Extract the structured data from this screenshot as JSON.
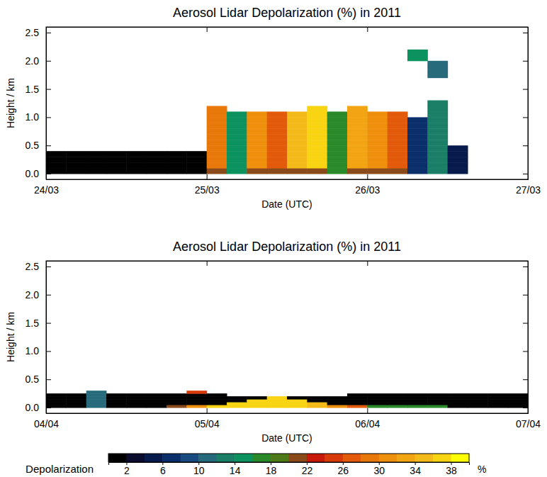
{
  "chart_data": [
    {
      "type": "heatmap",
      "title": "Aerosol Lidar Depolarization (%) in 2011",
      "x_label": "Date (UTC)",
      "y_label": "Height / km",
      "xlim": [
        0,
        3
      ],
      "ylim": [
        -0.1,
        2.6
      ],
      "xticks": [
        {
          "value": 0,
          "label": "24/03"
        },
        {
          "value": 1,
          "label": "25/03"
        },
        {
          "value": 2,
          "label": "26/03"
        },
        {
          "value": 3,
          "label": "27/03"
        }
      ],
      "yticks": [
        {
          "value": 0,
          "label": "0.0"
        },
        0.5,
        {
          "value": 1,
          "label": "1.0"
        },
        1.5,
        {
          "value": 2,
          "label": "2.0"
        },
        2.5
      ],
      "x_edges": [
        0,
        0.125,
        0.25,
        0.375,
        0.5,
        0.625,
        0.75,
        0.875,
        1,
        1.125,
        1.25,
        1.375,
        1.5,
        1.625,
        1.75,
        1.875,
        2,
        2.125,
        2.25,
        2.375,
        2.5,
        2.625,
        2.75,
        2.875,
        3
      ],
      "y_edges": [
        0,
        0.1,
        0.2,
        0.3,
        0.4,
        0.5,
        0.6,
        0.7,
        0.8,
        0.9,
        1.0,
        1.1,
        1.2,
        1.3,
        1.4,
        1.5,
        1.6,
        1.7,
        1.8,
        1.9,
        2.0,
        2.1,
        2.2
      ],
      "z": [
        [
          1,
          1,
          1,
          1,
          1,
          1,
          1,
          1,
          20,
          14,
          20,
          20,
          20,
          20,
          16,
          20,
          20,
          20,
          6,
          12,
          4,
          null,
          null,
          null
        ],
        [
          1,
          1,
          1,
          1,
          1,
          1,
          1,
          1,
          28,
          14,
          30,
          26,
          34,
          36,
          16,
          32,
          30,
          26,
          6,
          12,
          4,
          null,
          null,
          null
        ],
        [
          1,
          1,
          1,
          1,
          1,
          1,
          1,
          1,
          28,
          14,
          30,
          26,
          34,
          36,
          16,
          32,
          30,
          26,
          6,
          12,
          4,
          null,
          null,
          null
        ],
        [
          1,
          1,
          1,
          1,
          1,
          1,
          1,
          1,
          28,
          14,
          30,
          26,
          34,
          36,
          16,
          32,
          30,
          26,
          6,
          12,
          4,
          null,
          null,
          null
        ],
        [
          null,
          null,
          null,
          null,
          null,
          null,
          null,
          null,
          28,
          14,
          30,
          26,
          34,
          36,
          16,
          32,
          30,
          26,
          6,
          12,
          4,
          null,
          null,
          null
        ],
        [
          null,
          null,
          null,
          null,
          null,
          null,
          null,
          null,
          28,
          14,
          30,
          26,
          34,
          36,
          16,
          32,
          30,
          26,
          6,
          12,
          null,
          null,
          null,
          null
        ],
        [
          null,
          null,
          null,
          null,
          null,
          null,
          null,
          null,
          28,
          14,
          30,
          26,
          34,
          36,
          16,
          32,
          30,
          26,
          6,
          12,
          null,
          null,
          null,
          null
        ],
        [
          null,
          null,
          null,
          null,
          null,
          null,
          null,
          null,
          28,
          14,
          30,
          26,
          34,
          36,
          16,
          32,
          30,
          26,
          6,
          12,
          null,
          null,
          null,
          null
        ],
        [
          null,
          null,
          null,
          null,
          null,
          null,
          null,
          null,
          28,
          14,
          30,
          26,
          34,
          36,
          16,
          32,
          30,
          26,
          6,
          12,
          null,
          null,
          null,
          null
        ],
        [
          null,
          null,
          null,
          null,
          null,
          null,
          null,
          null,
          28,
          14,
          30,
          26,
          34,
          36,
          16,
          32,
          30,
          26,
          6,
          12,
          null,
          null,
          null,
          null
        ],
        [
          null,
          null,
          null,
          null,
          null,
          null,
          null,
          null,
          28,
          14,
          30,
          26,
          34,
          36,
          16,
          32,
          30,
          26,
          null,
          12,
          null,
          null,
          null,
          null
        ],
        [
          null,
          null,
          null,
          null,
          null,
          null,
          null,
          null,
          28,
          null,
          null,
          null,
          null,
          36,
          null,
          32,
          null,
          null,
          null,
          12,
          null,
          null,
          null,
          null
        ],
        [
          null,
          null,
          null,
          null,
          null,
          null,
          null,
          null,
          null,
          null,
          null,
          null,
          null,
          null,
          null,
          null,
          null,
          null,
          null,
          12,
          null,
          null,
          null,
          null
        ],
        [
          null,
          null,
          null,
          null,
          null,
          null,
          null,
          null,
          null,
          null,
          null,
          null,
          null,
          null,
          null,
          null,
          null,
          null,
          null,
          null,
          null,
          null,
          null,
          null
        ],
        [
          null,
          null,
          null,
          null,
          null,
          null,
          null,
          null,
          null,
          null,
          null,
          null,
          null,
          null,
          null,
          null,
          null,
          null,
          null,
          null,
          null,
          null,
          null,
          null
        ],
        [
          null,
          null,
          null,
          null,
          null,
          null,
          null,
          null,
          null,
          null,
          null,
          null,
          null,
          null,
          null,
          null,
          null,
          null,
          null,
          null,
          null,
          null,
          null,
          null
        ],
        [
          null,
          null,
          null,
          null,
          null,
          null,
          null,
          null,
          null,
          null,
          null,
          null,
          null,
          null,
          null,
          null,
          null,
          null,
          null,
          null,
          null,
          null,
          null,
          null
        ],
        [
          null,
          null,
          null,
          null,
          null,
          null,
          null,
          null,
          null,
          null,
          null,
          null,
          null,
          null,
          null,
          null,
          null,
          null,
          null,
          10,
          null,
          null,
          null,
          null
        ],
        [
          null,
          null,
          null,
          null,
          null,
          null,
          null,
          null,
          null,
          null,
          null,
          null,
          null,
          null,
          null,
          null,
          null,
          null,
          null,
          10,
          null,
          null,
          null,
          null
        ],
        [
          null,
          null,
          null,
          null,
          null,
          null,
          null,
          null,
          null,
          null,
          null,
          null,
          null,
          null,
          null,
          null,
          null,
          null,
          null,
          10,
          null,
          null,
          null,
          null
        ],
        [
          null,
          null,
          null,
          null,
          null,
          null,
          null,
          null,
          null,
          null,
          null,
          null,
          null,
          null,
          null,
          null,
          null,
          null,
          14,
          null,
          null,
          null,
          null,
          null
        ],
        [
          null,
          null,
          null,
          null,
          null,
          null,
          null,
          null,
          null,
          null,
          null,
          null,
          null,
          null,
          null,
          null,
          null,
          null,
          14,
          null,
          null,
          null,
          null,
          null
        ]
      ]
    },
    {
      "type": "heatmap",
      "title": "Aerosol Lidar Depolarization (%) in 2011",
      "x_label": "Date (UTC)",
      "y_label": "Height / km",
      "xlim": [
        0,
        3
      ],
      "ylim": [
        -0.1,
        2.6
      ],
      "xticks": [
        {
          "value": 0,
          "label": "04/04"
        },
        {
          "value": 1,
          "label": "05/04"
        },
        {
          "value": 2,
          "label": "06/04"
        },
        {
          "value": 3,
          "label": "07/04"
        }
      ],
      "yticks": [
        {
          "value": 0,
          "label": "0.0"
        },
        0.5,
        {
          "value": 1,
          "label": "1.0"
        },
        1.5,
        {
          "value": 2,
          "label": "2.0"
        },
        2.5
      ],
      "x_edges": [
        0,
        0.125,
        0.25,
        0.375,
        0.5,
        0.625,
        0.75,
        0.875,
        1,
        1.125,
        1.25,
        1.375,
        1.5,
        1.625,
        1.75,
        1.875,
        2,
        2.125,
        2.25,
        2.375,
        2.5,
        2.625,
        2.75,
        2.875,
        3
      ],
      "y_edges": [
        0,
        0.05,
        0.1,
        0.15,
        0.2,
        0.25,
        0.3
      ],
      "z": [
        [
          1,
          1,
          10,
          1,
          1,
          1,
          20,
          30,
          36,
          36,
          36,
          36,
          36,
          34,
          30,
          26,
          16,
          16,
          16,
          16,
          1,
          1,
          1,
          1
        ],
        [
          1,
          1,
          10,
          1,
          1,
          1,
          1,
          1,
          1,
          36,
          36,
          36,
          36,
          34,
          1,
          1,
          1,
          1,
          1,
          1,
          1,
          1,
          1,
          1
        ],
        [
          1,
          1,
          10,
          1,
          1,
          1,
          1,
          1,
          1,
          1,
          36,
          36,
          36,
          1,
          1,
          1,
          1,
          1,
          1,
          1,
          1,
          1,
          1,
          1
        ],
        [
          1,
          1,
          10,
          1,
          1,
          1,
          1,
          1,
          1,
          1,
          1,
          36,
          1,
          1,
          1,
          1,
          1,
          1,
          1,
          1,
          1,
          1,
          1,
          1
        ],
        [
          1,
          1,
          10,
          1,
          1,
          1,
          1,
          1,
          1,
          null,
          null,
          null,
          null,
          null,
          null,
          1,
          1,
          1,
          1,
          1,
          1,
          1,
          1,
          1
        ],
        [
          null,
          null,
          10,
          null,
          null,
          null,
          null,
          24,
          null,
          null,
          null,
          null,
          null,
          null,
          null,
          null,
          null,
          null,
          null,
          null,
          null,
          null,
          null,
          null
        ]
      ]
    }
  ],
  "colorbar": {
    "label": "Depolarization",
    "unit": "%",
    "range": [
      0,
      40
    ],
    "ticks": [
      2,
      6,
      10,
      14,
      18,
      22,
      26,
      30,
      34,
      38
    ],
    "colors": [
      "#000000",
      "#0b0b2e",
      "#061a4c",
      "#0a2f6a",
      "#194a80",
      "#276a7c",
      "#1a7f66",
      "#0c925e",
      "#2a8a2a",
      "#4f7a1a",
      "#8a4a1a",
      "#c81a0a",
      "#d93a0a",
      "#e25a0a",
      "#e8780a",
      "#ef900c",
      "#f2a412",
      "#f4ba1a",
      "#f8d412",
      "#ffff00"
    ]
  }
}
